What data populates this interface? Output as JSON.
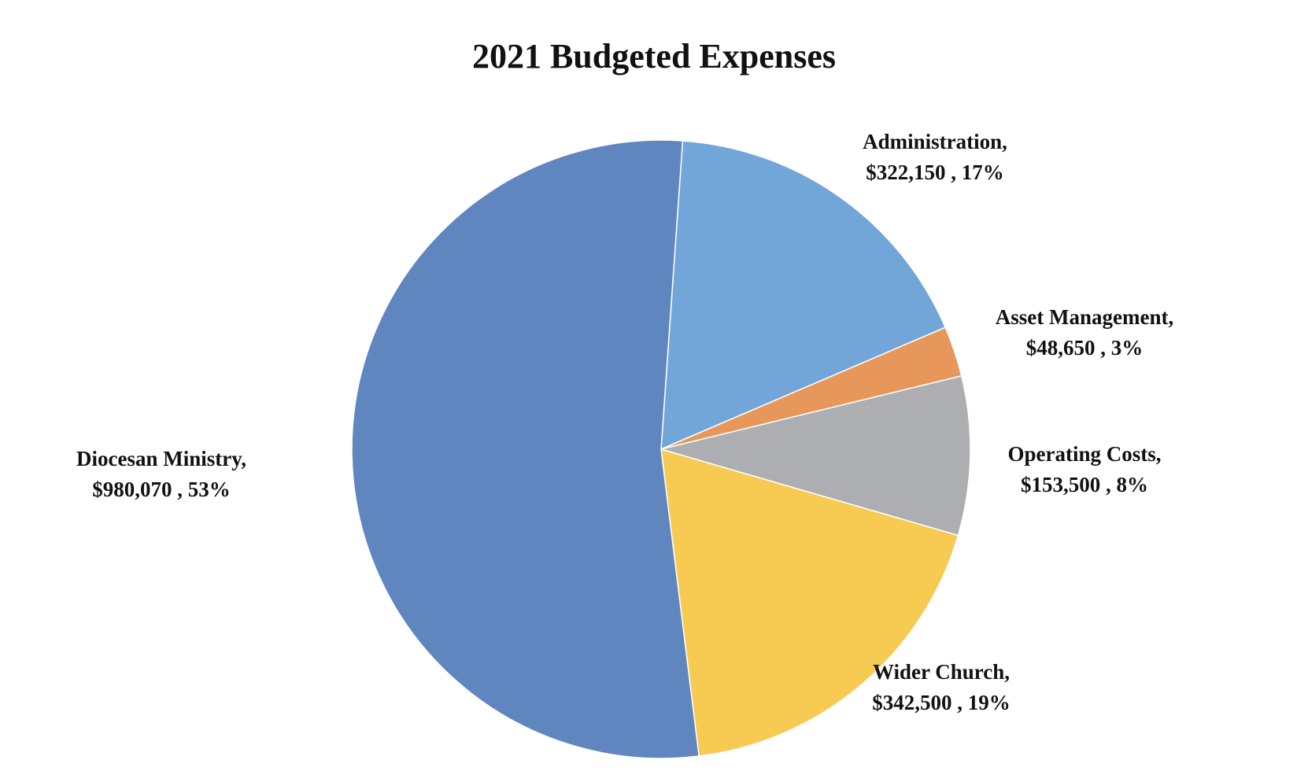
{
  "chart_data": {
    "type": "pie",
    "title": "2021 Budgeted Expenses",
    "slices": [
      {
        "name": "Administration,",
        "value": 322150,
        "value_label": "$322,150 , 17%",
        "percent": 17,
        "color": "#72A6D8"
      },
      {
        "name": "Asset Management,",
        "value": 48650,
        "value_label": "$48,650 , 3%",
        "percent": 3,
        "color": "#E8975A"
      },
      {
        "name": "Operating Costs,",
        "value": 153500,
        "value_label": "$153,500 , 8%",
        "percent": 8,
        "color": "#ACAEB1"
      },
      {
        "name": "Wider Church,",
        "value": 342500,
        "value_label": "$342,500 , 19%",
        "percent": 19,
        "color": "#F7CA52"
      },
      {
        "name": "Diocesan Ministry,",
        "value": 980070,
        "value_label": "$980,070 , 53%",
        "percent": 53,
        "color": "#6086C0"
      }
    ]
  }
}
